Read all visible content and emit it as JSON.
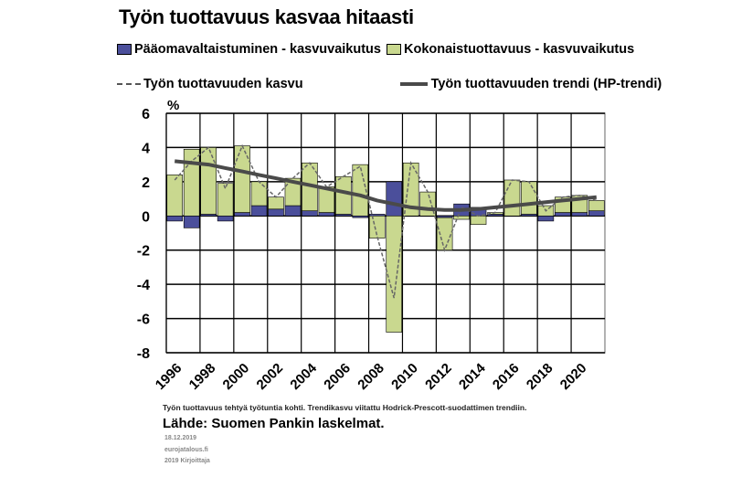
{
  "title": "Työn tuottavuus kasvaa hitaasti",
  "legend": {
    "capital": "Pääomavaltaistuminen - kasvuvaikutus",
    "tfp": "Kokonaistuottavuus - kasvuvaikutus",
    "growth": "Työn tuottavuuden kasvu",
    "trend": "Työn tuottavuuden trendi (HP-trendi)"
  },
  "colors": {
    "capital": "#4b4f9b",
    "tfp": "#c9d88f",
    "growth": "#666666",
    "trend": "#4a4a4a"
  },
  "note": "Työn tuottavuus tehtyä työtuntia kohti. Trendikasvu viitattu Hodrick-Prescott-suodattimen trendiin.",
  "source": "Lähde: Suomen Pankin laskelmat.",
  "meta": {
    "date": "18.12.2019",
    "site": "eurojatalous.fi",
    "id": "2019 Kirjoittaja"
  },
  "chart_data": {
    "type": "bar",
    "ylabel": "%",
    "ylim": [
      -8,
      6
    ],
    "yticks": [
      6,
      4,
      2,
      0,
      -2,
      -4,
      -6,
      -8
    ],
    "xticks": [
      "1996",
      "1998",
      "2000",
      "2002",
      "2004",
      "2006",
      "2008",
      "2010",
      "2012",
      "2014",
      "2016",
      "2018",
      "2020"
    ],
    "years": [
      1996,
      1997,
      1998,
      1999,
      2000,
      2001,
      2002,
      2003,
      2004,
      2005,
      2006,
      2007,
      2008,
      2009,
      2010,
      2011,
      2012,
      2013,
      2014,
      2015,
      2016,
      2017,
      2018,
      2019,
      2020,
      2021
    ],
    "series": [
      {
        "name": "Pääomavaltaistuminen - kasvuvaikutus",
        "kind": "bar",
        "values": [
          -0.3,
          -0.7,
          0.1,
          -0.3,
          0.2,
          0.6,
          0.4,
          0.6,
          0.3,
          0.2,
          0.1,
          -0.1,
          0.1,
          2.0,
          0.0,
          0.0,
          -0.1,
          0.7,
          0.5,
          0.1,
          0.0,
          0.1,
          -0.3,
          0.2,
          0.2,
          0.3
        ]
      },
      {
        "name": "Kokonaistuottavuus - kasvuvaikutus",
        "kind": "bar",
        "values": [
          2.4,
          3.9,
          3.9,
          1.9,
          3.9,
          1.4,
          0.7,
          1.6,
          2.8,
          1.5,
          2.2,
          3.0,
          -1.3,
          -6.8,
          3.1,
          1.4,
          -1.9,
          -0.2,
          -0.5,
          0.1,
          2.1,
          1.9,
          0.6,
          0.9,
          1.0,
          0.6
        ]
      },
      {
        "name": "Työn tuottavuuden kasvu",
        "kind": "line-dashed",
        "values": [
          2.1,
          3.2,
          4.0,
          1.6,
          4.1,
          2.0,
          1.1,
          2.2,
          3.1,
          1.7,
          2.3,
          2.9,
          -1.2,
          -4.8,
          3.1,
          1.4,
          -2.0,
          0.5,
          0.0,
          0.2,
          2.1,
          2.0,
          0.3,
          1.1,
          1.2,
          0.9
        ]
      },
      {
        "name": "Työn tuottavuuden trendi (HP-trendi)",
        "kind": "line-solid",
        "values": [
          3.2,
          3.1,
          3.0,
          2.8,
          2.6,
          2.4,
          2.2,
          2.0,
          1.8,
          1.6,
          1.4,
          1.2,
          0.9,
          0.7,
          0.5,
          0.4,
          0.35,
          0.35,
          0.4,
          0.5,
          0.6,
          0.7,
          0.8,
          0.9,
          1.0,
          1.1
        ]
      }
    ]
  }
}
